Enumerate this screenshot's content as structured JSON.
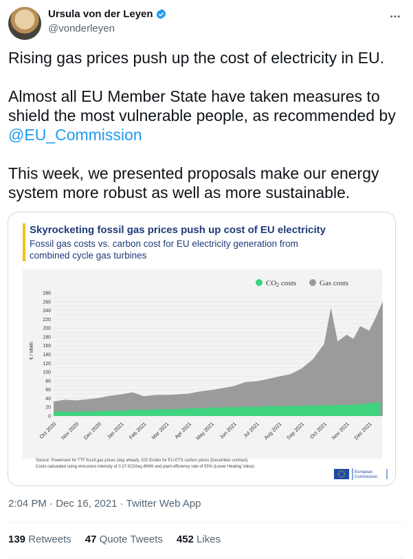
{
  "author": {
    "name": "Ursula von der Leyen",
    "handle": "@vonderleyen"
  },
  "tweet": {
    "line1": "Rising gas prices push up the cost of electricity in EU.",
    "line2a": "Almost all EU Member State have taken measures to shield the most vulnerable people, as recommended by",
    "mention": "@EU_Commission",
    "line3": "This week, we presented proposals make our energy system more robust as well as more sustainable."
  },
  "meta": {
    "time": "2:04 PM",
    "separator1": " · ",
    "date": "Dec 16, 2021",
    "separator2": " · ",
    "client": "Twitter Web App"
  },
  "stats": {
    "retweets_count": "139",
    "retweets_label": "Retweets",
    "quotes_count": "47",
    "quotes_label": "Quote Tweets",
    "likes_count": "452",
    "likes_label": "Likes"
  },
  "colors": {
    "accent": "#1d9bf0",
    "chart_title": "#1f3a78",
    "gas": "#9b9b9b",
    "co2": "#3fd37f"
  },
  "chart_data": {
    "type": "area",
    "title": "Skyrocketing fossil gas prices push up cost of EU electricity",
    "subtitle": "Fossil gas costs vs. carbon cost for EU electricity generation from combined cycle gas turbines",
    "ylabel": "€ / MWh",
    "ylim": [
      0,
      280
    ],
    "yticks": [
      0,
      10,
      20,
      30,
      40,
      50,
      60,
      70,
      80,
      90,
      100,
      110,
      120,
      130,
      140,
      150,
      160,
      170,
      180,
      190,
      200,
      210,
      220,
      230,
      240,
      250,
      260,
      270,
      280
    ],
    "x_tick_labels": [
      "Oct 2020",
      "Nov 2020",
      "Dec 2020",
      "Jan 2021",
      "Feb 2021",
      "Mar 2021",
      "Apr 2021",
      "May 2021",
      "Jun 2021",
      "Jul 2021",
      "Aug 2021",
      "Sep 2021",
      "Oct 2021",
      "Nov 2021",
      "Dec 2021"
    ],
    "stacked": true,
    "legend": [
      "CO2 costs",
      "Gas costs"
    ],
    "legend_position": "top-right",
    "series": [
      {
        "name": "CO2 costs",
        "color": "#3fd37f",
        "x": [
          0,
          0.5,
          1,
          1.5,
          2,
          2.5,
          3,
          3.5,
          4,
          4.5,
          5,
          5.5,
          6,
          6.5,
          7,
          7.5,
          8,
          8.5,
          9,
          9.5,
          10,
          10.5,
          11,
          11.5,
          12,
          12.5,
          13,
          13.5,
          14,
          14.5
        ],
        "values": [
          10,
          10,
          9.5,
          10,
          11,
          12,
          12,
          14,
          14,
          15,
          15,
          16,
          17,
          18,
          19,
          19.5,
          20,
          21,
          21,
          22,
          22,
          23,
          23,
          24,
          24,
          24.5,
          25,
          26,
          29,
          31
        ]
      },
      {
        "name": "Gas costs",
        "color": "#9b9b9b",
        "x": [
          0,
          0.5,
          1,
          1.5,
          2,
          2.5,
          3,
          3.5,
          4,
          4.5,
          5,
          5.5,
          6,
          6.5,
          7,
          7.5,
          8,
          8.5,
          9,
          9.5,
          10,
          10.5,
          11,
          11.5,
          12,
          12.3,
          12.6,
          13,
          13.3,
          13.6,
          14,
          14.3,
          14.6
        ],
        "values": [
          23,
          27,
          26,
          28,
          30,
          34,
          37,
          40,
          31,
          33,
          33,
          33,
          34,
          38,
          40,
          44,
          48,
          56,
          58,
          62,
          68,
          72,
          85,
          105,
          140,
          222,
          145,
          160,
          150,
          178,
          165,
          195,
          230
        ]
      }
    ],
    "source": "Source: Powernext for TTF fossil gas prices (day ahead), ICE-Endex for EU-ETS carbon prices (December contract)",
    "note": "Costs calculated using emissions intensity of 0.37 tCO2eq./MWh and plant efficiency rate of 55% (Lower Heating Value)",
    "logo_text": "European Commission"
  }
}
